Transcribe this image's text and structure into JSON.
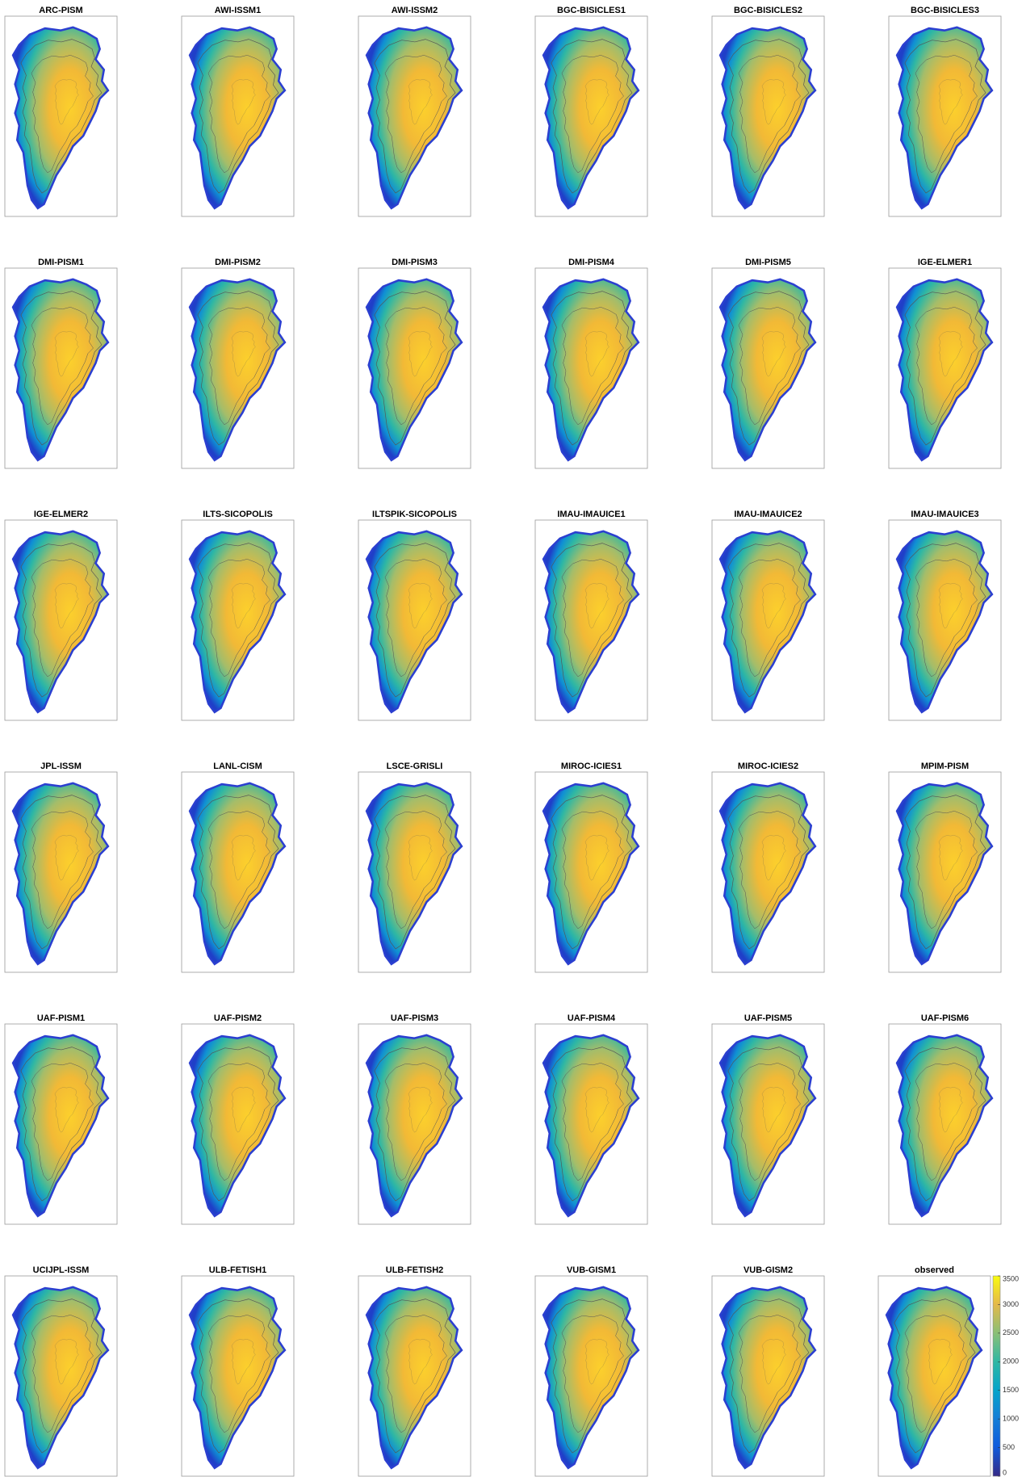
{
  "panels": [
    "ARC-PISM",
    "AWI-ISSM1",
    "AWI-ISSM2",
    "BGC-BISICLES1",
    "BGC-BISICLES2",
    "BGC-BISICLES3",
    "DMI-PISM1",
    "DMI-PISM2",
    "DMI-PISM3",
    "DMI-PISM4",
    "DMI-PISM5",
    "IGE-ELMER1",
    "IGE-ELMER2",
    "ILTS-SICOPOLIS",
    "ILTSPIK-SICOPOLIS",
    "IMAU-IMAUICE1",
    "IMAU-IMAUICE2",
    "IMAU-IMAUICE3",
    "JPL-ISSM",
    "LANL-CISM",
    "LSCE-GRISLI",
    "MIROC-ICIES1",
    "MIROC-ICIES2",
    "MPIM-PISM",
    "UAF-PISM1",
    "UAF-PISM2",
    "UAF-PISM3",
    "UAF-PISM4",
    "UAF-PISM5",
    "UAF-PISM6",
    "UCIJPL-ISSM",
    "ULB-FETISH1",
    "ULB-FETISH2",
    "VUB-GISM1",
    "VUB-GISM2",
    "observed"
  ],
  "colorbar": {
    "lim": [
      0,
      3500
    ],
    "ticks": [
      0,
      500,
      1000,
      1500,
      2000,
      2500,
      3000,
      3500
    ]
  }
}
